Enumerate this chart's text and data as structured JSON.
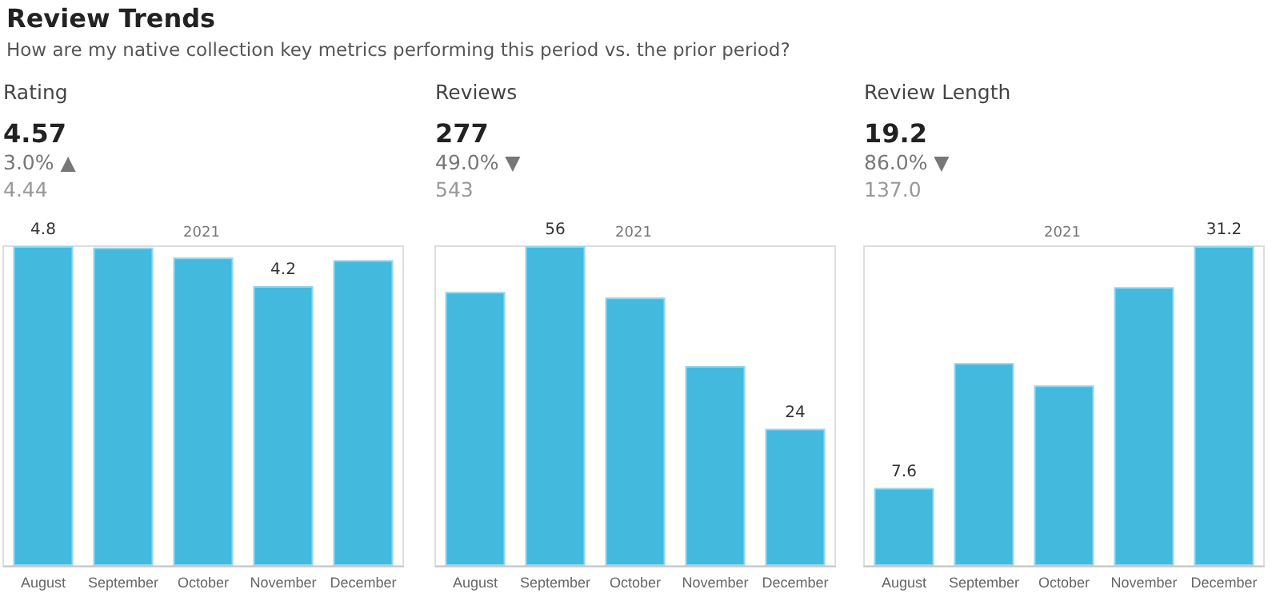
{
  "chart_data": [
    {
      "type": "bar",
      "title": "Review Trends",
      "subtitle": "How are my native collection key metrics performing this period vs. the prior period?",
      "ylabel": "Rating",
      "annotations": [
        "4.57",
        "3.0% ▲",
        "4.44",
        "2021"
      ],
      "categories": [
        "August",
        "September",
        "October",
        "November",
        "December"
      ],
      "values": [
        4.8,
        4.78,
        4.63,
        4.2,
        4.59
      ],
      "value_labels": [
        "4.8",
        null,
        null,
        "4.2",
        null
      ],
      "color": "#44b9de"
    },
    {
      "type": "bar",
      "ylabel": "Reviews",
      "annotations": [
        "277",
        "49.0% ▼",
        "543",
        "2021"
      ],
      "categories": [
        "August",
        "September",
        "October",
        "November",
        "December"
      ],
      "values": [
        48,
        56,
        47,
        35,
        24
      ],
      "value_labels": [
        null,
        "56",
        null,
        null,
        "24"
      ],
      "color": "#44b9de"
    },
    {
      "type": "bar",
      "ylabel": "Review Length",
      "annotations": [
        "19.2",
        "86.0% ▼",
        "137.0",
        "2021"
      ],
      "categories": [
        "August",
        "September",
        "October",
        "November",
        "December"
      ],
      "values": [
        7.6,
        19.8,
        17.6,
        27.2,
        31.2
      ],
      "value_labels": [
        "7.6",
        null,
        null,
        null,
        "31.2"
      ],
      "color": "#44b9de"
    }
  ]
}
